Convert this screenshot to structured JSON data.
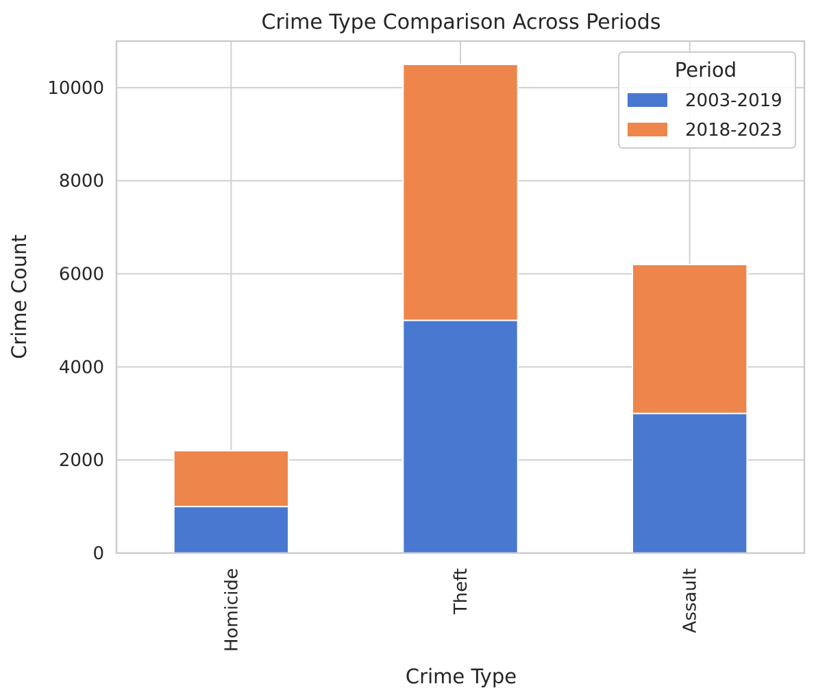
{
  "chart_data": {
    "type": "bar",
    "stacked": true,
    "title": "Crime Type Comparison Across Periods",
    "xlabel": "Crime Type",
    "ylabel": "Crime Count",
    "categories": [
      "Homicide",
      "Theft",
      "Assault"
    ],
    "series": [
      {
        "name": "2003-2019",
        "values": [
          1000,
          5000,
          3000
        ],
        "color": "#4878d0"
      },
      {
        "name": "2018-2023",
        "values": [
          1200,
          5500,
          3200
        ],
        "color": "#ee854a"
      }
    ],
    "ylim": [
      0,
      11000
    ],
    "yticks": [
      0,
      2000,
      4000,
      6000,
      8000,
      10000
    ],
    "grid": true,
    "legend": {
      "title": "Period",
      "placement": "top-right"
    },
    "x_tick_rotation": 90
  }
}
